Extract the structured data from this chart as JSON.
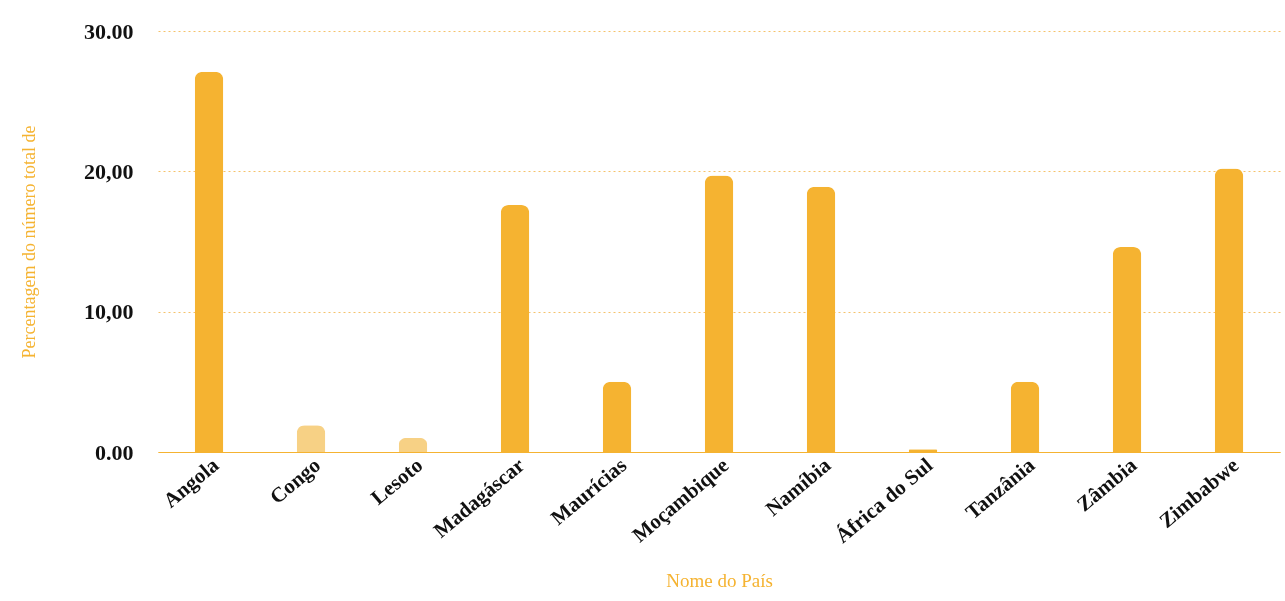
{
  "chart_data": {
    "type": "bar",
    "xlabel": "Nome do País",
    "ylabel": "Percentagem do número total de",
    "categories": [
      "Angola",
      "Congo",
      "Lesoto",
      "Madagáscar",
      "Maurícias",
      "Moçambique",
      "Namíbia",
      "África do Sul",
      "Tanzânia",
      "Zâmbia",
      "Zimbabwe"
    ],
    "values": [
      27.1,
      1.9,
      1.0,
      17.6,
      5.0,
      19.7,
      18.9,
      0.2,
      5.0,
      14.6,
      20.2
    ],
    "colors": [
      "#f5b331",
      "#f7d185",
      "#f7d185",
      "#f5b331",
      "#f5b331",
      "#f5b331",
      "#f5b331",
      "#f5b331",
      "#f5b331",
      "#f5b331",
      "#f5b331"
    ],
    "ylim": [
      0,
      30
    ],
    "yticks": [
      {
        "value": 0,
        "label": "0.00"
      },
      {
        "value": 10,
        "label": "10,00"
      },
      {
        "value": 20,
        "label": "20,00"
      },
      {
        "value": 30,
        "label": "30.00"
      }
    ],
    "grid": "y"
  }
}
